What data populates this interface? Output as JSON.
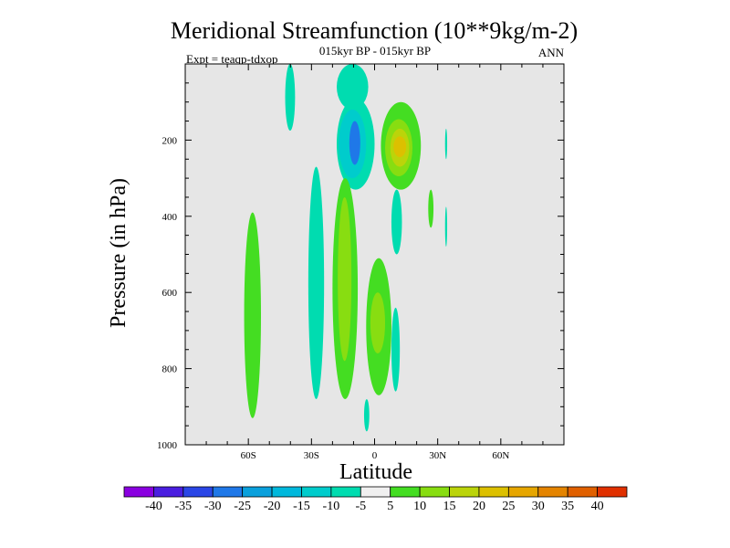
{
  "chart_data": {
    "type": "contour",
    "title": "Meridional Streamfunction (10**9kg/m-2)",
    "subtitle": "015kyr BP - 015kyr BP",
    "left_label": "Expt = teaqp-tdxop",
    "right_label": "ANN",
    "xlabel": "Latitude",
    "ylabel": "Pressure (in hPa)",
    "xlim": [
      -90,
      90
    ],
    "ylim": [
      1000,
      0
    ],
    "x_ticks": [
      {
        "value": -60,
        "label": "60S"
      },
      {
        "value": -30,
        "label": "30S"
      },
      {
        "value": 0,
        "label": "0"
      },
      {
        "value": 30,
        "label": "30N"
      },
      {
        "value": 60,
        "label": "60N"
      }
    ],
    "y_ticks": [
      {
        "value": 200,
        "label": "200"
      },
      {
        "value": 400,
        "label": "400"
      },
      {
        "value": 600,
        "label": "600"
      },
      {
        "value": 800,
        "label": "800"
      },
      {
        "value": 1000,
        "label": "1000"
      }
    ],
    "background_color": "#e6e6e6",
    "colorbar": {
      "levels": [
        "-40",
        "-35",
        "-30",
        "-25",
        "-20",
        "-15",
        "-10",
        "-5",
        "5",
        "10",
        "15",
        "20",
        "25",
        "30",
        "35",
        "40"
      ],
      "colors": [
        "#8a00e0",
        "#4a1ee0",
        "#2a46e6",
        "#1f78e8",
        "#0aa0dc",
        "#00b8dc",
        "#00cccc",
        "#00dcb0",
        "#f0f0f0",
        "#44dd22",
        "#88dd11",
        "#bbd40a",
        "#dcc000",
        "#e6a600",
        "#e48400",
        "#e06000",
        "#e03000"
      ]
    },
    "regions": [
      {
        "color": "#00dcb0",
        "lat_min": -42.5,
        "lat_max": -37.8,
        "p_top": 0,
        "p_bottom": 175
      },
      {
        "color": "#00dcb0",
        "lat_min": -18,
        "lat_max": -3,
        "p_top": 0,
        "p_bottom": 120
      },
      {
        "color": "#00dcb0",
        "lat_min": -18,
        "lat_max": 0,
        "p_top": 90,
        "p_bottom": 330
      },
      {
        "color": "#00cccc",
        "lat_min": -17,
        "lat_max": -4,
        "p_top": 120,
        "p_bottom": 300
      },
      {
        "color": "#1f78e8",
        "lat_min": -12,
        "lat_max": -6.8,
        "p_top": 150,
        "p_bottom": 265
      },
      {
        "color": "#44dd22",
        "lat_min": 3,
        "lat_max": 22,
        "p_top": 100,
        "p_bottom": 330
      },
      {
        "color": "#88dd11",
        "lat_min": 5,
        "lat_max": 18,
        "p_top": 145,
        "p_bottom": 295
      },
      {
        "color": "#bbd40a",
        "lat_min": 7.5,
        "lat_max": 16.5,
        "p_top": 170,
        "p_bottom": 270
      },
      {
        "color": "#dcc000",
        "lat_min": 9,
        "lat_max": 15,
        "p_top": 190,
        "p_bottom": 245
      },
      {
        "color": "#00dcb0",
        "lat_min": -31.5,
        "lat_max": -24,
        "p_top": 270,
        "p_bottom": 880
      },
      {
        "color": "#44dd22",
        "lat_min": -20,
        "lat_max": -8,
        "p_top": 300,
        "p_bottom": 880
      },
      {
        "color": "#88dd11",
        "lat_min": -17.5,
        "lat_max": -11,
        "p_top": 350,
        "p_bottom": 780
      },
      {
        "color": "#44dd22",
        "lat_min": -62,
        "lat_max": -54,
        "p_top": 390,
        "p_bottom": 930
      },
      {
        "color": "#44dd22",
        "lat_min": -4,
        "lat_max": 8,
        "p_top": 510,
        "p_bottom": 870
      },
      {
        "color": "#88dd11",
        "lat_min": -2,
        "lat_max": 5,
        "p_top": 600,
        "p_bottom": 760
      },
      {
        "color": "#00dcb0",
        "lat_min": 8,
        "lat_max": 13,
        "p_top": 330,
        "p_bottom": 500
      },
      {
        "color": "#00dcb0",
        "lat_min": 8,
        "lat_max": 12,
        "p_top": 640,
        "p_bottom": 860
      },
      {
        "color": "#00dcb0",
        "lat_min": -5,
        "lat_max": -2.5,
        "p_top": 880,
        "p_bottom": 965
      },
      {
        "color": "#44dd22",
        "lat_min": 25.5,
        "lat_max": 28,
        "p_top": 330,
        "p_bottom": 430
      },
      {
        "color": "#00dcb0",
        "lat_min": 33.5,
        "lat_max": 34.5,
        "p_top": 170,
        "p_bottom": 250
      },
      {
        "color": "#00dcb0",
        "lat_min": 33.5,
        "lat_max": 34.5,
        "p_top": 375,
        "p_bottom": 480
      }
    ]
  }
}
